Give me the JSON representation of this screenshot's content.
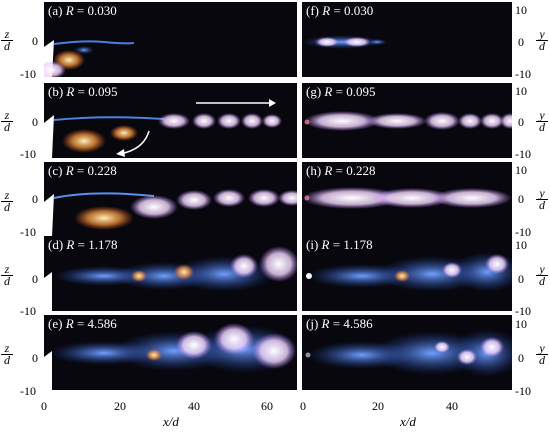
{
  "figure": {
    "axis_left_label": {
      "num": "z",
      "den": "d"
    },
    "axis_right_label": {
      "num": "y",
      "den": "d"
    },
    "x_label": "x/d",
    "y_ticks": [
      "10",
      "0",
      "-10"
    ],
    "x_ticks_left": [
      "0",
      "20",
      "40",
      "60"
    ],
    "x_ticks_right": [
      "0",
      "20",
      "40"
    ]
  },
  "panels": [
    {
      "tag": "(a)",
      "r_value": "0.030",
      "view": "side"
    },
    {
      "tag": "(b)",
      "r_value": "0.095",
      "view": "side"
    },
    {
      "tag": "(c)",
      "r_value": "0.228",
      "view": "side"
    },
    {
      "tag": "(d)",
      "r_value": "1.178",
      "view": "side"
    },
    {
      "tag": "(e)",
      "r_value": "4.586",
      "view": "side"
    },
    {
      "tag": "(f)",
      "r_value": "0.030",
      "view": "top"
    },
    {
      "tag": "(g)",
      "r_value": "0.095",
      "view": "top"
    },
    {
      "tag": "(h)",
      "r_value": "0.228",
      "view": "top"
    },
    {
      "tag": "(i)",
      "r_value": "1.178",
      "view": "top"
    },
    {
      "tag": "(j)",
      "r_value": "4.586",
      "view": "top"
    }
  ],
  "colors": {
    "background": "#07070d",
    "jet_blue": "#3a6fd8",
    "jet_pink": "#f0c8ff",
    "jet_orange": "#ffb060"
  }
}
